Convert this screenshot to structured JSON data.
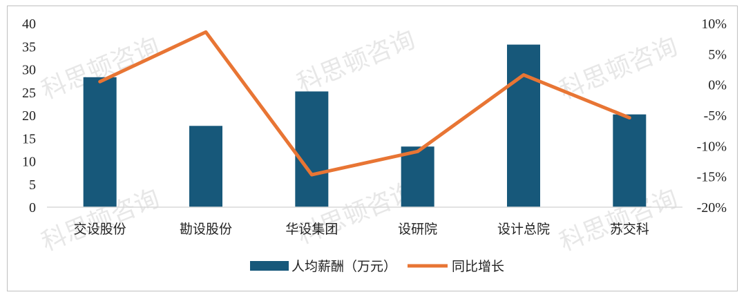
{
  "watermark": "科思顿咨询",
  "colors": {
    "bar": "#17587a",
    "line": "#e87534",
    "axis": "#d9d9d9"
  },
  "chart_data": {
    "type": "bar",
    "categories": [
      "交设股份",
      "勘设股份",
      "华设集团",
      "设研院",
      "设计总院",
      "苏交科"
    ],
    "series": [
      {
        "name": "人均薪酬（万元）",
        "type": "bar",
        "axis": "left",
        "values": [
          28.3,
          17.7,
          25.2,
          13.2,
          35.4,
          20.2
        ]
      },
      {
        "name": "同比增长",
        "type": "line",
        "axis": "right",
        "values": [
          0.5,
          8.6,
          -14.7,
          -10.9,
          1.6,
          -5.4
        ]
      }
    ],
    "left_axis": {
      "ylim": [
        0,
        40
      ],
      "ticks": [
        "0",
        "5",
        "10",
        "15",
        "20",
        "25",
        "30",
        "35",
        "40"
      ]
    },
    "right_axis": {
      "ylim": [
        -20,
        10
      ],
      "ticks": [
        "-20%",
        "-15%",
        "-10%",
        "-5%",
        "0%",
        "5%",
        "10%"
      ]
    },
    "legend": "bottom-center",
    "grid": false
  }
}
